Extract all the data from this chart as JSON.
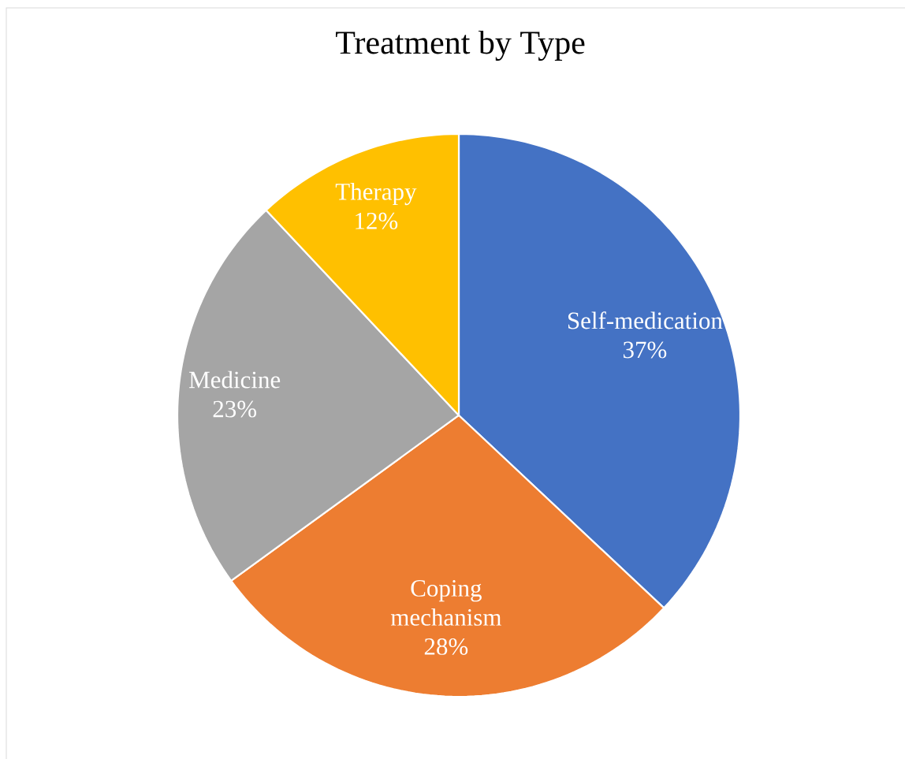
{
  "chart_data": {
    "type": "pie",
    "title": "Treatment by Type",
    "categories": [
      "Self-medication",
      "Coping mechanism",
      "Medicine",
      "Therapy"
    ],
    "values": [
      37,
      28,
      23,
      12
    ],
    "colors": [
      "#4472c4",
      "#ed7d31",
      "#a5a5a5",
      "#ffc000"
    ],
    "value_labels": [
      "37%",
      "28%",
      "23%",
      "12%"
    ]
  }
}
